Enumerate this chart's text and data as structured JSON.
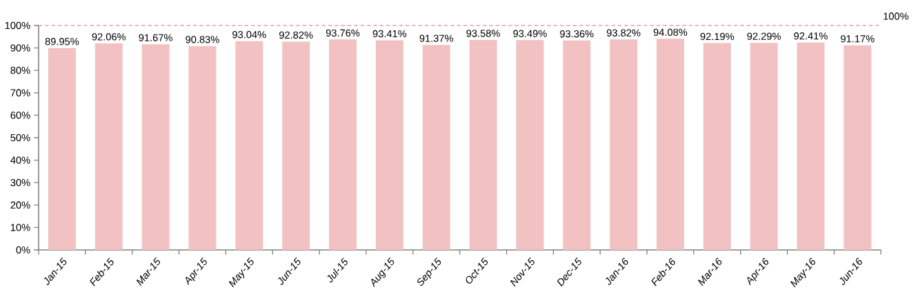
{
  "chart_data": {
    "type": "bar",
    "categories": [
      "Jan-15",
      "Feb-15",
      "Mar-15",
      "Apr-15",
      "May-15",
      "Jun-15",
      "Jul-15",
      "Aug-15",
      "Sep-15",
      "Oct-15",
      "Nov-15",
      "Dec-15",
      "Jan-16",
      "Feb-16",
      "Mar-16",
      "Apr-16",
      "May-16",
      "Jun-16"
    ],
    "values": [
      89.95,
      92.06,
      91.67,
      90.83,
      93.04,
      92.82,
      93.76,
      93.41,
      91.37,
      93.58,
      93.49,
      93.36,
      93.82,
      94.08,
      92.19,
      92.29,
      92.41,
      91.17
    ],
    "value_labels": [
      "89.95%",
      "92.06%",
      "91.67%",
      "90.83%",
      "93.04%",
      "92.82%",
      "93.76%",
      "93.41%",
      "91.37%",
      "93.58%",
      "93.49%",
      "93.36%",
      "93.82%",
      "94.08%",
      "92.19%",
      "92.29%",
      "92.41%",
      "91.17%"
    ],
    "color": "#f2c2c2",
    "ylim": [
      0,
      100
    ],
    "yticks": [
      {
        "value": 0,
        "label": "0%"
      },
      {
        "value": 10,
        "label": "10%"
      },
      {
        "value": 20,
        "label": "20%"
      },
      {
        "value": 30,
        "label": "30%"
      },
      {
        "value": 40,
        "label": "40%"
      },
      {
        "value": 50,
        "label": "50%"
      },
      {
        "value": 60,
        "label": "60%"
      },
      {
        "value": 70,
        "label": "70%"
      },
      {
        "value": 80,
        "label": "80%"
      },
      {
        "value": 90,
        "label": "90%"
      },
      {
        "value": 100,
        "label": "100%"
      }
    ],
    "ref_lines": [
      {
        "axis": "y",
        "value": 100,
        "label": "100%",
        "color": "#e8a0a0",
        "line_style": "dashed"
      }
    ],
    "grid": false
  }
}
